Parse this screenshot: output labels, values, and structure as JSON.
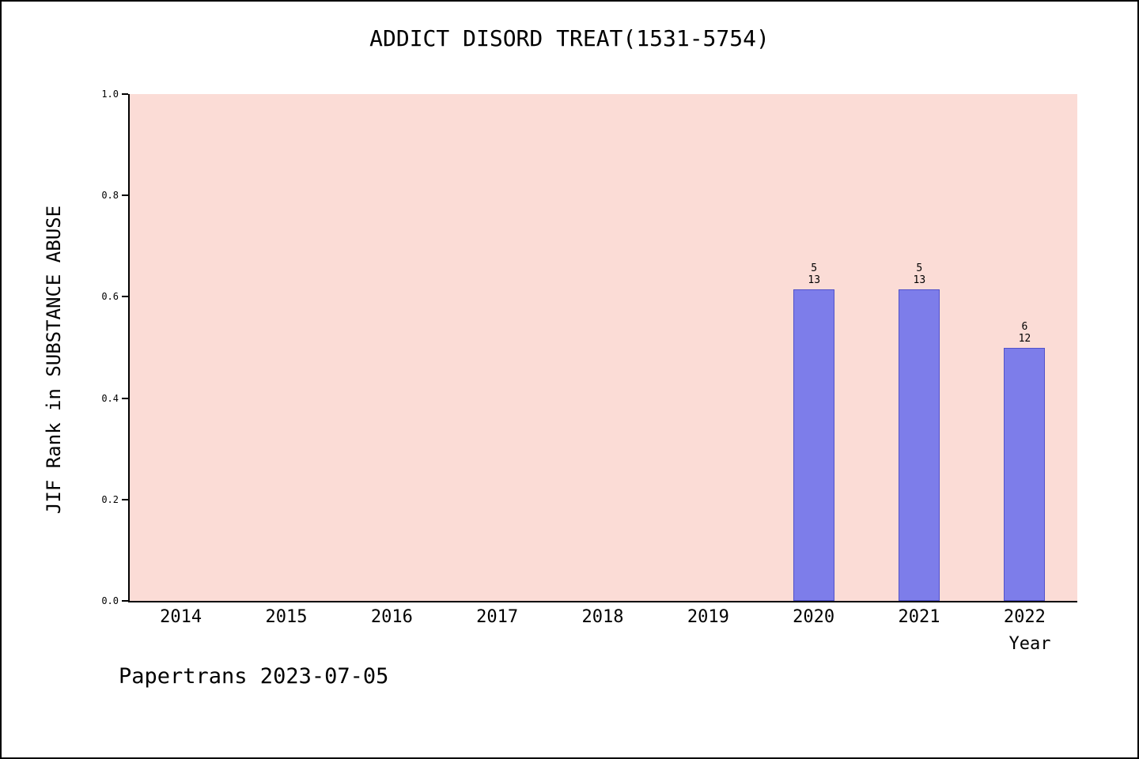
{
  "title": "ADDICT DISORD TREAT(1531-5754)",
  "footer": "Papertrans 2023-07-05",
  "chart_data": {
    "type": "bar",
    "title": "ADDICT DISORD TREAT(1531-5754)",
    "xlabel": "Year",
    "ylabel": "JIF Rank in SUBSTANCE ABUSE",
    "categories": [
      "2014",
      "2015",
      "2016",
      "2017",
      "2018",
      "2019",
      "2020",
      "2021",
      "2022"
    ],
    "values": [
      null,
      null,
      null,
      null,
      null,
      null,
      0.615,
      0.615,
      0.5
    ],
    "annotations": [
      {
        "category": "2020",
        "rank": "5",
        "total": "13"
      },
      {
        "category": "2021",
        "rank": "5",
        "total": "13"
      },
      {
        "category": "2022",
        "rank": "6",
        "total": "12"
      }
    ],
    "ylim": [
      0,
      1
    ],
    "ytick_labels": [
      "0.0",
      "0.2",
      "0.4",
      "0.6",
      "0.8",
      "1.0"
    ],
    "grid": false,
    "legend": null,
    "colors": {
      "plot_bg": "#fbdcd6",
      "bar": "#7d7dea",
      "bar_border": "#5252c8"
    }
  }
}
